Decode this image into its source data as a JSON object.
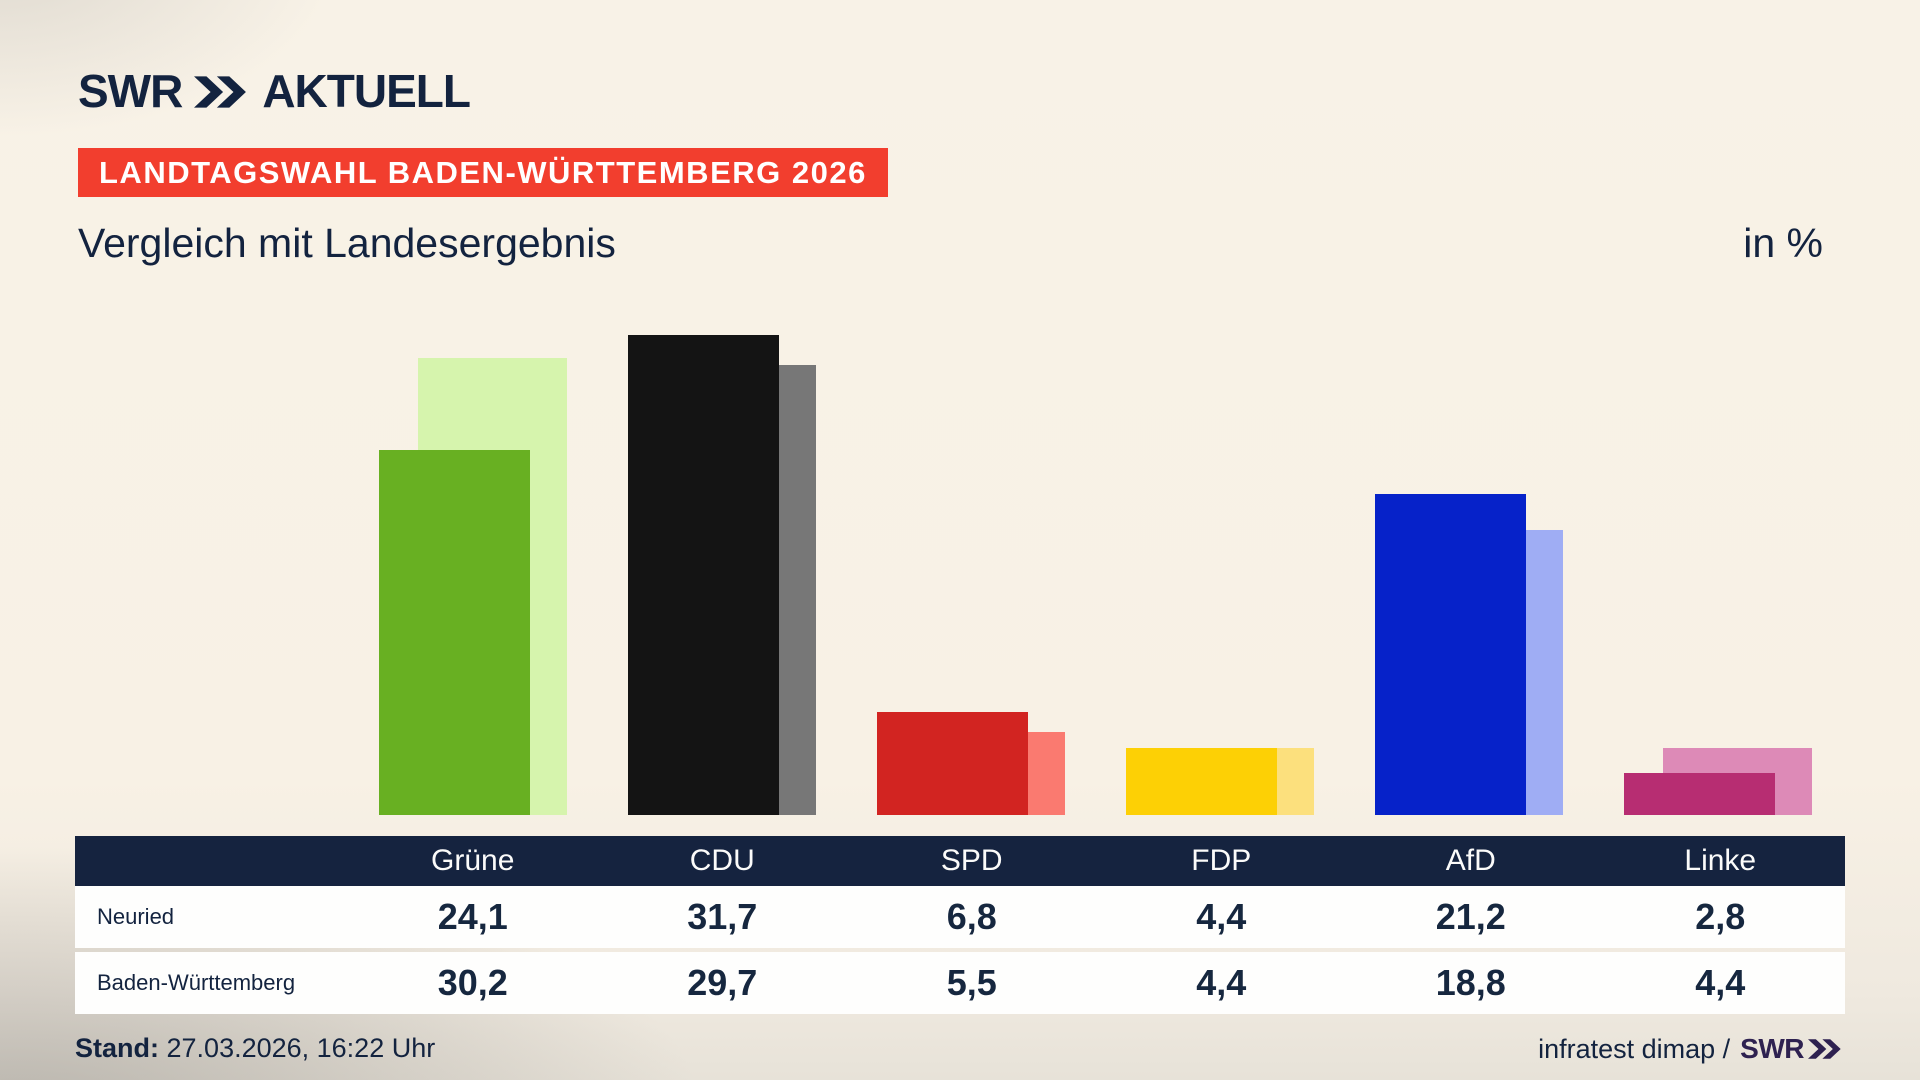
{
  "header": {
    "logo": {
      "swr": "SWR",
      "aktuell": "AKTUELL"
    },
    "banner": "LANDTAGSWAHL BADEN-WÜRTTEMBERG 2026",
    "subtitle": "Vergleich mit Landesergebnis",
    "unit_label": "in %"
  },
  "chart_data": {
    "type": "bar",
    "title": "Vergleich mit Landesergebnis",
    "unit": "%",
    "categories": [
      "Grüne",
      "CDU",
      "SPD",
      "FDP",
      "AfD",
      "Linke"
    ],
    "series": [
      {
        "name": "Neuried",
        "values": [
          24.1,
          31.7,
          6.8,
          4.4,
          21.2,
          2.8
        ]
      },
      {
        "name": "Baden-Württemberg",
        "values": [
          30.2,
          29.7,
          5.5,
          4.4,
          18.8,
          4.4
        ]
      }
    ],
    "colors": {
      "front": [
        "#68b022",
        "#141414",
        "#d22421",
        "#fdd005",
        "#0622c9",
        "#b72d72"
      ],
      "back": [
        "#d6f4ad",
        "#777777",
        "#fa7a70",
        "#fce07d",
        "#9fadf4",
        "#dd8ab7"
      ]
    },
    "ylim": [
      0,
      32
    ],
    "grid": false,
    "legend_position": "table-below"
  },
  "table": {
    "columns": [
      "Grüne",
      "CDU",
      "SPD",
      "FDP",
      "AfD",
      "Linke"
    ],
    "row_labels": [
      "Neuried",
      "Baden-Württemberg"
    ],
    "rows": [
      [
        "24,1",
        "31,7",
        "6,8",
        "4,4",
        "21,2",
        "2,8"
      ],
      [
        "30,2",
        "29,7",
        "5,5",
        "4,4",
        "18,8",
        "4,4"
      ]
    ]
  },
  "footer": {
    "stand_label": "Stand:",
    "stand_value": "27.03.2026, 16:22 Uhr",
    "attribution": "infratest dimap /",
    "source_logo": "SWR"
  },
  "colors": {
    "accent_red": "#f23e2e",
    "navy": "#13233f",
    "table_header_bg": "#15233f",
    "footer_logo_purple": "#2e2150",
    "background_beige": "#f8f1e5"
  }
}
